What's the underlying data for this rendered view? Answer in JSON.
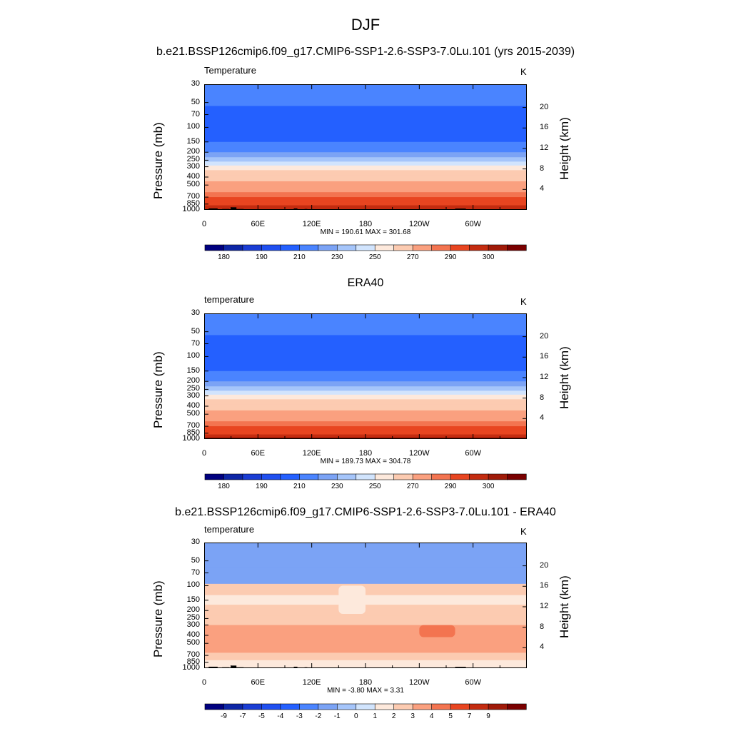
{
  "figure": {
    "title": "DJF",
    "ylabel_left": "Pressure (mb)",
    "ylabel_right": "Height (km)",
    "pressure_ticks": [
      "30",
      "50",
      "70",
      "100",
      "150",
      "200",
      "250",
      "300",
      "400",
      "500",
      "700",
      "850",
      "1000"
    ],
    "height_ticks": [
      "20",
      "16",
      "12",
      "8",
      "4"
    ],
    "lon_ticks": [
      "0",
      "60E",
      "120E",
      "180",
      "120W",
      "60W"
    ]
  },
  "chart_data": [
    {
      "type": "heatmap",
      "title": "b.e21.BSSP126cmip6.f09_g17.CMIP6-SSP1-2.6-SSP3-7.0Lu.101 (yrs 2015-2039)",
      "variable": "Temperature",
      "units": "K",
      "xlabel": "",
      "ylabel": "Pressure (mb)",
      "min_text": "MIN = 190.61  MAX = 301.68",
      "min": 190.61,
      "max": 301.68,
      "colorbar_labels": [
        "180",
        "190",
        "210",
        "230",
        "250",
        "270",
        "290",
        "300"
      ],
      "levels": [
        175,
        180,
        185,
        190,
        200,
        210,
        220,
        230,
        240,
        250,
        260,
        270,
        280,
        290,
        295,
        300
      ],
      "layers": [
        {
          "p": 30,
          "v": 208
        },
        {
          "p": 40,
          "v": 205
        },
        {
          "p": 50,
          "v": 200
        },
        {
          "p": 55,
          "v": 192
        },
        {
          "p": 130,
          "v": 195
        },
        {
          "p": 150,
          "v": 203
        },
        {
          "p": 175,
          "v": 208
        },
        {
          "p": 200,
          "v": 213
        },
        {
          "p": 230,
          "v": 222
        },
        {
          "p": 260,
          "v": 232
        },
        {
          "p": 290,
          "v": 245
        },
        {
          "p": 330,
          "v": 252
        },
        {
          "p": 380,
          "v": 257
        },
        {
          "p": 450,
          "v": 263
        },
        {
          "p": 530,
          "v": 268
        },
        {
          "p": 610,
          "v": 275
        },
        {
          "p": 700,
          "v": 280
        },
        {
          "p": 800,
          "v": 286
        },
        {
          "p": 880,
          "v": 292
        },
        {
          "p": 1000,
          "v": 296
        }
      ],
      "topography": [
        {
          "lon": 5,
          "w": 10,
          "p": 960
        },
        {
          "lon": 20,
          "w": 8,
          "p": 975
        },
        {
          "lon": 30,
          "w": 6,
          "p": 930
        },
        {
          "lon": 36,
          "w": 8,
          "p": 975
        },
        {
          "lon": 100,
          "w": 4,
          "p": 960
        },
        {
          "lon": 112,
          "w": 3,
          "p": 975
        },
        {
          "lon": 280,
          "w": 12,
          "p": 965
        },
        {
          "lon": 292,
          "w": 4,
          "p": 985
        }
      ]
    },
    {
      "type": "heatmap",
      "title": "ERA40",
      "variable": "temperature",
      "units": "K",
      "xlabel": "",
      "ylabel": "Pressure (mb)",
      "min_text": "MIN = 189.73  MAX = 304.78",
      "min": 189.73,
      "max": 304.78,
      "colorbar_labels": [
        "180",
        "190",
        "210",
        "230",
        "250",
        "270",
        "290",
        "300"
      ],
      "levels": [
        175,
        180,
        185,
        190,
        200,
        210,
        220,
        230,
        240,
        250,
        260,
        270,
        280,
        290,
        295,
        300
      ],
      "layers": [
        {
          "p": 30,
          "v": 208
        },
        {
          "p": 40,
          "v": 205
        },
        {
          "p": 50,
          "v": 200
        },
        {
          "p": 55,
          "v": 192
        },
        {
          "p": 130,
          "v": 195
        },
        {
          "p": 150,
          "v": 203
        },
        {
          "p": 175,
          "v": 208
        },
        {
          "p": 200,
          "v": 213
        },
        {
          "p": 230,
          "v": 222
        },
        {
          "p": 260,
          "v": 232
        },
        {
          "p": 290,
          "v": 245
        },
        {
          "p": 330,
          "v": 252
        },
        {
          "p": 380,
          "v": 257
        },
        {
          "p": 450,
          "v": 263
        },
        {
          "p": 530,
          "v": 268
        },
        {
          "p": 610,
          "v": 275
        },
        {
          "p": 700,
          "v": 280
        },
        {
          "p": 800,
          "v": 286
        },
        {
          "p": 880,
          "v": 292
        },
        {
          "p": 950,
          "v": 297
        },
        {
          "p": 1000,
          "v": 302
        }
      ],
      "topography": []
    },
    {
      "type": "heatmap",
      "title": "b.e21.BSSP126cmip6.f09_g17.CMIP6-SSP1-2.6-SSP3-7.0Lu.101 - ERA40",
      "variable": "temperature",
      "units": "K",
      "xlabel": "",
      "ylabel": "Pressure (mb)",
      "min_text": "MIN =  -3.80  MAX =   3.31",
      "min": -3.8,
      "max": 3.31,
      "colorbar_labels": [
        "-9",
        "-7",
        "-5",
        "-4",
        "-3",
        "-2",
        "-1",
        "0",
        "1",
        "2",
        "3",
        "4",
        "5",
        "7",
        "9"
      ],
      "levels": [
        -11,
        -9,
        -7,
        -5,
        -4,
        -3,
        -2,
        -1,
        0,
        1,
        2,
        3,
        4,
        5,
        7,
        9
      ],
      "layers": [
        {
          "p": 30,
          "v": -2.5
        },
        {
          "p": 40,
          "v": -2.5
        },
        {
          "p": 60,
          "v": -2.5
        },
        {
          "p": 85,
          "v": -2.5
        },
        {
          "p": 95,
          "v": 1.5
        },
        {
          "p": 130,
          "v": 0.5
        },
        {
          "p": 170,
          "v": 1.5
        },
        {
          "p": 230,
          "v": 1.5
        },
        {
          "p": 300,
          "v": 2.5
        },
        {
          "p": 500,
          "v": 2.5
        },
        {
          "p": 650,
          "v": 1.5
        },
        {
          "p": 800,
          "v": 0.5
        },
        {
          "p": 1000,
          "v": 0.5
        }
      ],
      "patches": [
        {
          "lon": 150,
          "w": 30,
          "p1": 100,
          "p2": 220,
          "v": 0.5
        },
        {
          "lon": 240,
          "w": 40,
          "p1": 300,
          "p2": 420,
          "v": 3.5
        }
      ],
      "topography": [
        {
          "lon": 5,
          "w": 10,
          "p": 960
        },
        {
          "lon": 20,
          "w": 8,
          "p": 975
        },
        {
          "lon": 30,
          "w": 6,
          "p": 930
        },
        {
          "lon": 36,
          "w": 8,
          "p": 975
        },
        {
          "lon": 100,
          "w": 4,
          "p": 960
        },
        {
          "lon": 112,
          "w": 3,
          "p": 975
        },
        {
          "lon": 280,
          "w": 12,
          "p": 965
        },
        {
          "lon": 292,
          "w": 4,
          "p": 985
        }
      ]
    }
  ],
  "palettes": {
    "temperature": [
      "#00007f",
      "#0d26a6",
      "#1a3dd4",
      "#1f4ff0",
      "#2460ff",
      "#4a84ff",
      "#7ba3f5",
      "#a5c5fa",
      "#d1e4fd",
      "#fde9dc",
      "#fccbb1",
      "#faa07f",
      "#f37450",
      "#e84520",
      "#c42c10",
      "#a01a08",
      "#7a0000"
    ],
    "diff": [
      "#00007f",
      "#0d26a6",
      "#1a3dd4",
      "#1f4ff0",
      "#2460ff",
      "#4a84ff",
      "#7ba3f5",
      "#a5c5fa",
      "#d1e4fd",
      "#fde9dc",
      "#fccbb1",
      "#faa07f",
      "#f37450",
      "#e84520",
      "#c42c10",
      "#a01a08",
      "#7a0000"
    ]
  }
}
